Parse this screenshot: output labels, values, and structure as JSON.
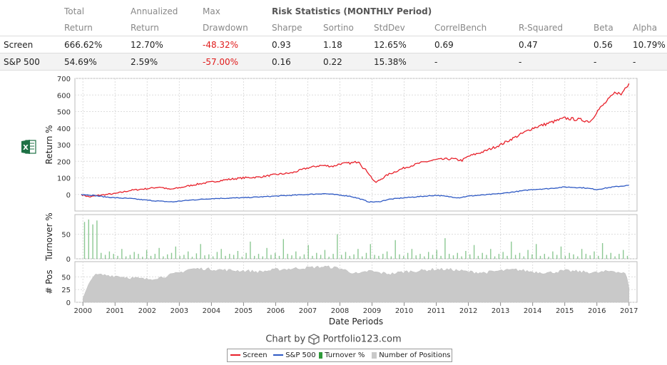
{
  "stats_table": {
    "header_row1": [
      "",
      "Total",
      "Annualized",
      "Max",
      "Risk Statistics (MONTHLY Period)",
      "",
      "",
      "",
      "",
      "",
      ""
    ],
    "header_row2": [
      "",
      "Return",
      "Return",
      "Drawdown",
      "Sharpe",
      "Sortino",
      "StdDev",
      "CorrelBench",
      "R-Squared",
      "Beta",
      "Alpha"
    ],
    "rows": [
      [
        "Screen",
        "666.62%",
        "12.70%",
        "-48.32%",
        "0.93",
        "1.18",
        "12.65%",
        "0.69",
        "0.47",
        "0.56",
        "10.79%"
      ],
      [
        "S&P 500",
        "54.69%",
        "2.59%",
        "-57.00%",
        "0.16",
        "0.22",
        "15.38%",
        "-",
        "-",
        "-",
        "-"
      ]
    ]
  },
  "excel_icon": "excel-export-icon",
  "credit": {
    "prefix": "Chart by",
    "brand": "Portfolio123.com",
    "icon": "cube-logo-icon"
  },
  "colors": {
    "screen": "#e8202a",
    "sp500": "#2e59c4",
    "turnover": "#2e9a3a",
    "positions": "#c9c9c9"
  },
  "chart_data": [
    {
      "type": "line",
      "ylabel": "Return %",
      "xlabel": "Date Periods",
      "ylim": [
        -100,
        700
      ],
      "yticks": [
        0,
        100,
        200,
        300,
        400,
        500,
        600,
        700
      ],
      "xticks": [
        "2000",
        "2001",
        "2002",
        "2003",
        "2004",
        "2005",
        "2006",
        "2007",
        "2008",
        "2009",
        "2010",
        "2011",
        "2012",
        "2013",
        "2014",
        "2015",
        "2016",
        "2017"
      ],
      "grid": true,
      "legend_position": "bottom",
      "series": [
        {
          "name": "Screen",
          "x": [
            1999.95,
            2000.2,
            2000.5,
            2001.0,
            2001.5,
            2002.0,
            2002.4,
            2002.7,
            2003.0,
            2003.5,
            2004.0,
            2004.5,
            2005.0,
            2005.5,
            2006.0,
            2006.5,
            2007.0,
            2007.4,
            2007.8,
            2008.0,
            2008.4,
            2008.6,
            2008.7,
            2008.85,
            2009.1,
            2009.5,
            2010.0,
            2010.5,
            2011.0,
            2011.5,
            2011.8,
            2012.0,
            2012.5,
            2013.0,
            2013.5,
            2014.0,
            2014.5,
            2015.0,
            2015.5,
            2015.8,
            2016.0,
            2016.4,
            2016.6,
            2016.75,
            2016.9,
            2017.0
          ],
          "y": [
            0,
            -15,
            -5,
            5,
            25,
            35,
            45,
            30,
            40,
            60,
            75,
            90,
            100,
            105,
            120,
            130,
            160,
            175,
            170,
            185,
            190,
            200,
            165,
            140,
            70,
            120,
            160,
            190,
            210,
            215,
            205,
            230,
            260,
            300,
            350,
            400,
            430,
            460,
            450,
            440,
            500,
            580,
            620,
            600,
            650,
            670
          ]
        },
        {
          "name": "S&P 500",
          "x": [
            1999.95,
            2000.3,
            2000.7,
            2001.0,
            2001.5,
            2002.0,
            2002.5,
            2002.8,
            2003.0,
            2003.5,
            2004.0,
            2005.0,
            2006.0,
            2007.0,
            2007.5,
            2007.8,
            2008.3,
            2008.6,
            2008.9,
            2009.2,
            2009.5,
            2010.0,
            2011.0,
            2011.7,
            2012.0,
            2013.0,
            2014.0,
            2014.5,
            2015.0,
            2015.6,
            2016.0,
            2016.5,
            2017.0
          ],
          "y": [
            0,
            -5,
            -15,
            -20,
            -25,
            -35,
            -42,
            -45,
            -40,
            -32,
            -25,
            -20,
            -10,
            0,
            5,
            0,
            -10,
            -25,
            -45,
            -45,
            -30,
            -20,
            -5,
            -20,
            -10,
            5,
            30,
            35,
            45,
            40,
            30,
            45,
            55
          ]
        }
      ]
    },
    {
      "type": "bar",
      "ylabel": "Turnover %",
      "ylim": [
        0,
        90
      ],
      "yticks": [
        0,
        50
      ],
      "series": [
        {
          "name": "Turnover %",
          "values": [
            75,
            80,
            70,
            78,
            12,
            8,
            15,
            10,
            6,
            20,
            5,
            8,
            14,
            10,
            4,
            18,
            6,
            10,
            22,
            5,
            9,
            12,
            25,
            6,
            8,
            15,
            4,
            11,
            30,
            7,
            9,
            5,
            14,
            20,
            6,
            10,
            8,
            16,
            4,
            12,
            35,
            6,
            10,
            5,
            22,
            8,
            12,
            6,
            40,
            10,
            7,
            15,
            5,
            9,
            28,
            6,
            12,
            8,
            18,
            4,
            10,
            50,
            8,
            14,
            6,
            9,
            20,
            5,
            12,
            30,
            8,
            6,
            10,
            15,
            5,
            38,
            9,
            6,
            12,
            20,
            7,
            10,
            5,
            14,
            8,
            18,
            6,
            42,
            10,
            7,
            12,
            5,
            16,
            9,
            28,
            6,
            12,
            8,
            20,
            5,
            10,
            14,
            6,
            35,
            8,
            12,
            5,
            18,
            9,
            30,
            6,
            10,
            4,
            15,
            8,
            25,
            6,
            12,
            9,
            5,
            20,
            10,
            7,
            15,
            6,
            32,
            8,
            12,
            5,
            10,
            18,
            6
          ]
        }
      ]
    },
    {
      "type": "area",
      "ylabel": "# Pos",
      "ylim": [
        0,
        80
      ],
      "yticks": [
        0,
        25,
        50
      ],
      "series": [
        {
          "name": "Number of Positions",
          "x": [
            2000.0,
            2000.1,
            2000.3,
            2000.5,
            2001.0,
            2001.5,
            2002.0,
            2002.5,
            2003.0,
            2003.3,
            2003.6,
            2004.0,
            2004.5,
            2005.0,
            2005.5,
            2006.0,
            2006.5,
            2007.0,
            2007.5,
            2008.0,
            2008.3,
            2008.6,
            2008.9,
            2009.2,
            2009.6,
            2010.0,
            2010.5,
            2011.0,
            2011.5,
            2012.0,
            2012.5,
            2013.0,
            2013.5,
            2014.0,
            2014.5,
            2015.0,
            2015.5,
            2016.0,
            2016.5,
            2016.9,
            2017.0
          ],
          "y": [
            8,
            22,
            52,
            54,
            52,
            48,
            45,
            50,
            58,
            65,
            66,
            65,
            63,
            62,
            60,
            64,
            66,
            68,
            70,
            67,
            60,
            55,
            62,
            58,
            56,
            60,
            62,
            65,
            64,
            60,
            58,
            62,
            64,
            60,
            58,
            62,
            60,
            58,
            62,
            56,
            28
          ]
        }
      ]
    }
  ],
  "legend": {
    "items": [
      {
        "label": "Screen",
        "marker": "line"
      },
      {
        "label": "S&P 500",
        "marker": "line"
      },
      {
        "label": "Turnover %",
        "marker": "box"
      },
      {
        "label": "Number of Positions",
        "marker": "box"
      }
    ]
  }
}
